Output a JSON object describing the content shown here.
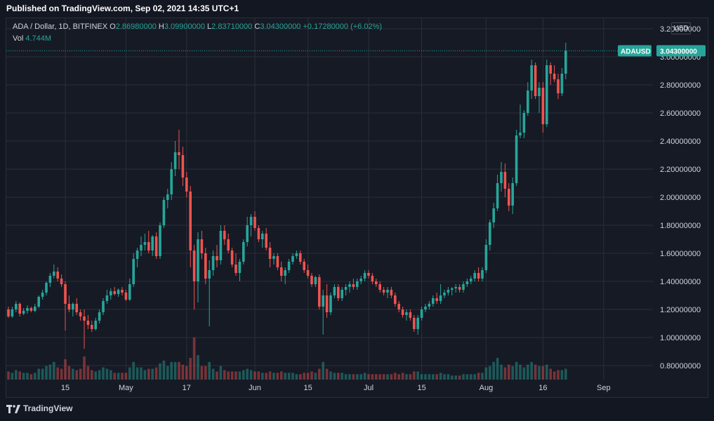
{
  "header": {
    "published": "Published on TradingView.com, Sep 02, 2021 14:35 UTC+1"
  },
  "legend": {
    "symbol": "ADA / Dollar, 1D, BITFINEX",
    "o_label": "O",
    "o_value": "2.86980000",
    "h_label": "H",
    "h_value": "3.09900000",
    "l_label": "L",
    "l_value": "2.83710000",
    "c_label": "C",
    "c_value": "3.04300000",
    "change": "+0.17280000 (+6.02%)",
    "vol_label": "Vol",
    "vol_value": "4.744M"
  },
  "currency": "USD",
  "price_tag": {
    "symbol": "ADAUSD",
    "value": "3.04300000"
  },
  "footer": {
    "brand": "TradingView"
  },
  "colors": {
    "up": "#26a69a",
    "down": "#ef5350",
    "bg": "#161a25",
    "grid": "#2a2e39"
  },
  "chart_data": {
    "type": "candlestick",
    "symbol": "ADAUSD",
    "ylim": [
      0.7,
      3.2
    ],
    "y_ticks": [
      {
        "value": 0.8,
        "label": "0.80000000"
      },
      {
        "value": 1.0,
        "label": "1.00000000"
      },
      {
        "value": 1.2,
        "label": "1.20000000"
      },
      {
        "value": 1.4,
        "label": "1.40000000"
      },
      {
        "value": 1.6,
        "label": "1.60000000"
      },
      {
        "value": 1.8,
        "label": "1.80000000"
      },
      {
        "value": 2.0,
        "label": "2.00000000"
      },
      {
        "value": 2.2,
        "label": "2.20000000"
      },
      {
        "value": 2.4,
        "label": "2.40000000"
      },
      {
        "value": 2.6,
        "label": "2.60000000"
      },
      {
        "value": 2.8,
        "label": "2.80000000"
      },
      {
        "value": 3.0,
        "label": "3.00000000"
      },
      {
        "value": 3.2,
        "label": "3.20000000"
      }
    ],
    "x_ticks": [
      {
        "index": 15,
        "label": "15"
      },
      {
        "index": 31,
        "label": "May"
      },
      {
        "index": 47,
        "label": "17"
      },
      {
        "index": 65,
        "label": "Jun"
      },
      {
        "index": 79,
        "label": "15"
      },
      {
        "index": 95,
        "label": "Jul"
      },
      {
        "index": 109,
        "label": "15"
      },
      {
        "index": 126,
        "label": "Aug"
      },
      {
        "index": 141,
        "label": "16"
      },
      {
        "index": 157,
        "label": "Sep"
      }
    ],
    "last_price": 3.043,
    "candles": [
      [
        1.2,
        1.22,
        1.14,
        1.15,
        0.6
      ],
      [
        1.15,
        1.22,
        1.14,
        1.2,
        0.5
      ],
      [
        1.2,
        1.26,
        1.18,
        1.24,
        0.7
      ],
      [
        1.24,
        1.25,
        1.15,
        1.17,
        0.6
      ],
      [
        1.17,
        1.21,
        1.16,
        1.19,
        0.5
      ],
      [
        1.19,
        1.23,
        1.17,
        1.21,
        0.5
      ],
      [
        1.21,
        1.22,
        1.18,
        1.19,
        0.4
      ],
      [
        1.19,
        1.24,
        1.18,
        1.22,
        0.5
      ],
      [
        1.22,
        1.3,
        1.21,
        1.29,
        0.8
      ],
      [
        1.29,
        1.34,
        1.27,
        1.32,
        0.8
      ],
      [
        1.32,
        1.4,
        1.3,
        1.39,
        1.0
      ],
      [
        1.39,
        1.46,
        1.36,
        1.44,
        1.1
      ],
      [
        1.44,
        1.52,
        1.42,
        1.47,
        1.3
      ],
      [
        1.47,
        1.5,
        1.4,
        1.42,
        0.9
      ],
      [
        1.42,
        1.45,
        1.36,
        1.38,
        0.8
      ],
      [
        1.38,
        1.4,
        1.05,
        1.24,
        1.5
      ],
      [
        1.24,
        1.3,
        1.18,
        1.2,
        1.0
      ],
      [
        1.2,
        1.25,
        1.15,
        1.24,
        0.8
      ],
      [
        1.24,
        1.28,
        1.16,
        1.18,
        0.7
      ],
      [
        1.18,
        1.2,
        1.12,
        1.15,
        0.8
      ],
      [
        1.15,
        1.2,
        0.92,
        1.12,
        1.7
      ],
      [
        1.12,
        1.16,
        1.06,
        1.09,
        1.0
      ],
      [
        1.09,
        1.12,
        1.04,
        1.06,
        0.7
      ],
      [
        1.06,
        1.14,
        1.05,
        1.12,
        0.6
      ],
      [
        1.12,
        1.2,
        1.1,
        1.18,
        0.7
      ],
      [
        1.18,
        1.28,
        1.16,
        1.26,
        0.9
      ],
      [
        1.26,
        1.34,
        1.24,
        1.3,
        0.8
      ],
      [
        1.3,
        1.35,
        1.27,
        1.33,
        0.7
      ],
      [
        1.33,
        1.36,
        1.3,
        1.31,
        0.5
      ],
      [
        1.31,
        1.35,
        1.29,
        1.34,
        0.5
      ],
      [
        1.34,
        1.36,
        1.3,
        1.32,
        0.5
      ],
      [
        1.32,
        1.34,
        1.26,
        1.27,
        0.5
      ],
      [
        1.27,
        1.42,
        1.26,
        1.38,
        0.9
      ],
      [
        1.38,
        1.6,
        1.36,
        1.56,
        1.3
      ],
      [
        1.56,
        1.64,
        1.5,
        1.62,
        0.9
      ],
      [
        1.62,
        1.72,
        1.58,
        1.66,
        0.9
      ],
      [
        1.66,
        1.74,
        1.62,
        1.68,
        0.7
      ],
      [
        1.68,
        1.76,
        1.6,
        1.62,
        0.8
      ],
      [
        1.62,
        1.73,
        1.58,
        1.72,
        0.8
      ],
      [
        1.72,
        1.75,
        1.56,
        1.58,
        0.9
      ],
      [
        1.58,
        1.82,
        1.56,
        1.8,
        1.2
      ],
      [
        1.8,
        2.0,
        1.78,
        1.98,
        1.4
      ],
      [
        1.98,
        2.06,
        1.92,
        2.02,
        1.0
      ],
      [
        2.02,
        2.25,
        1.98,
        2.2,
        1.3
      ],
      [
        2.2,
        2.4,
        2.15,
        2.32,
        1.3
      ],
      [
        2.32,
        2.48,
        2.2,
        2.3,
        1.3
      ],
      [
        2.3,
        2.36,
        2.08,
        2.14,
        1.1
      ],
      [
        2.14,
        2.18,
        2.0,
        2.04,
        1.0
      ],
      [
        2.04,
        2.08,
        1.5,
        1.62,
        1.6
      ],
      [
        1.62,
        1.66,
        1.2,
        1.4,
        3.1
      ],
      [
        1.4,
        1.75,
        1.25,
        1.7,
        1.8
      ],
      [
        1.7,
        1.76,
        1.56,
        1.6,
        1.0
      ],
      [
        1.6,
        1.64,
        1.38,
        1.42,
        1.0
      ],
      [
        1.42,
        1.55,
        1.08,
        1.48,
        1.3
      ],
      [
        1.48,
        1.62,
        1.44,
        1.58,
        0.8
      ],
      [
        1.58,
        1.66,
        1.5,
        1.55,
        0.6
      ],
      [
        1.55,
        1.8,
        1.52,
        1.76,
        1.0
      ],
      [
        1.76,
        1.8,
        1.66,
        1.7,
        0.7
      ],
      [
        1.7,
        1.74,
        1.6,
        1.62,
        0.6
      ],
      [
        1.62,
        1.64,
        1.5,
        1.52,
        0.6
      ],
      [
        1.52,
        1.6,
        1.44,
        1.46,
        0.6
      ],
      [
        1.46,
        1.56,
        1.4,
        1.54,
        0.6
      ],
      [
        1.54,
        1.7,
        1.52,
        1.68,
        0.7
      ],
      [
        1.68,
        1.86,
        1.65,
        1.8,
        0.8
      ],
      [
        1.8,
        1.88,
        1.72,
        1.86,
        0.7
      ],
      [
        1.86,
        1.9,
        1.76,
        1.78,
        0.6
      ],
      [
        1.78,
        1.8,
        1.68,
        1.7,
        0.6
      ],
      [
        1.7,
        1.76,
        1.64,
        1.74,
        0.5
      ],
      [
        1.74,
        1.78,
        1.62,
        1.64,
        0.5
      ],
      [
        1.64,
        1.68,
        1.5,
        1.56,
        0.6
      ],
      [
        1.56,
        1.6,
        1.52,
        1.58,
        0.5
      ],
      [
        1.58,
        1.6,
        1.48,
        1.5,
        0.5
      ],
      [
        1.5,
        1.54,
        1.4,
        1.44,
        0.6
      ],
      [
        1.44,
        1.5,
        1.38,
        1.48,
        0.5
      ],
      [
        1.48,
        1.56,
        1.46,
        1.54,
        0.5
      ],
      [
        1.54,
        1.6,
        1.52,
        1.58,
        0.5
      ],
      [
        1.58,
        1.62,
        1.56,
        1.6,
        0.4
      ],
      [
        1.6,
        1.62,
        1.52,
        1.54,
        0.4
      ],
      [
        1.54,
        1.56,
        1.46,
        1.48,
        0.5
      ],
      [
        1.48,
        1.52,
        1.42,
        1.44,
        0.5
      ],
      [
        1.44,
        1.46,
        1.36,
        1.38,
        0.6
      ],
      [
        1.38,
        1.44,
        1.36,
        1.43,
        0.5
      ],
      [
        1.43,
        1.45,
        1.2,
        1.22,
        0.8
      ],
      [
        1.22,
        1.34,
        1.02,
        1.3,
        1.3
      ],
      [
        1.3,
        1.38,
        1.14,
        1.18,
        0.8
      ],
      [
        1.18,
        1.32,
        1.16,
        1.3,
        0.6
      ],
      [
        1.3,
        1.38,
        1.28,
        1.36,
        0.5
      ],
      [
        1.36,
        1.38,
        1.26,
        1.28,
        0.5
      ],
      [
        1.28,
        1.36,
        1.26,
        1.34,
        0.5
      ],
      [
        1.34,
        1.38,
        1.3,
        1.36,
        0.4
      ],
      [
        1.36,
        1.4,
        1.32,
        1.38,
        0.4
      ],
      [
        1.38,
        1.42,
        1.34,
        1.36,
        0.4
      ],
      [
        1.36,
        1.42,
        1.34,
        1.4,
        0.4
      ],
      [
        1.4,
        1.44,
        1.38,
        1.42,
        0.4
      ],
      [
        1.42,
        1.48,
        1.4,
        1.46,
        0.5
      ],
      [
        1.46,
        1.48,
        1.42,
        1.44,
        0.4
      ],
      [
        1.44,
        1.46,
        1.38,
        1.4,
        0.4
      ],
      [
        1.4,
        1.42,
        1.36,
        1.38,
        0.4
      ],
      [
        1.38,
        1.4,
        1.32,
        1.34,
        0.4
      ],
      [
        1.34,
        1.36,
        1.3,
        1.32,
        0.4
      ],
      [
        1.32,
        1.36,
        1.28,
        1.34,
        0.4
      ],
      [
        1.34,
        1.36,
        1.28,
        1.3,
        0.4
      ],
      [
        1.3,
        1.32,
        1.22,
        1.24,
        0.5
      ],
      [
        1.24,
        1.26,
        1.18,
        1.2,
        0.4
      ],
      [
        1.2,
        1.22,
        1.14,
        1.16,
        0.5
      ],
      [
        1.16,
        1.2,
        1.12,
        1.18,
        0.4
      ],
      [
        1.18,
        1.2,
        1.12,
        1.14,
        0.4
      ],
      [
        1.14,
        1.16,
        1.04,
        1.06,
        0.6
      ],
      [
        1.06,
        1.16,
        1.02,
        1.14,
        0.6
      ],
      [
        1.14,
        1.22,
        1.12,
        1.2,
        0.4
      ],
      [
        1.2,
        1.24,
        1.18,
        1.22,
        0.4
      ],
      [
        1.22,
        1.26,
        1.2,
        1.24,
        0.4
      ],
      [
        1.24,
        1.3,
        1.22,
        1.28,
        0.4
      ],
      [
        1.28,
        1.32,
        1.24,
        1.26,
        0.4
      ],
      [
        1.26,
        1.38,
        1.24,
        1.3,
        0.5
      ],
      [
        1.3,
        1.34,
        1.28,
        1.32,
        0.4
      ],
      [
        1.32,
        1.36,
        1.3,
        1.34,
        0.4
      ],
      [
        1.34,
        1.36,
        1.3,
        1.35,
        0.3
      ],
      [
        1.35,
        1.38,
        1.32,
        1.36,
        0.3
      ],
      [
        1.36,
        1.38,
        1.32,
        1.34,
        0.3
      ],
      [
        1.34,
        1.4,
        1.32,
        1.38,
        0.4
      ],
      [
        1.38,
        1.42,
        1.36,
        1.4,
        0.4
      ],
      [
        1.4,
        1.44,
        1.38,
        1.42,
        0.4
      ],
      [
        1.42,
        1.48,
        1.4,
        1.46,
        0.4
      ],
      [
        1.46,
        1.5,
        1.4,
        1.42,
        0.5
      ],
      [
        1.42,
        1.5,
        1.4,
        1.48,
        0.5
      ],
      [
        1.48,
        1.7,
        1.46,
        1.66,
        0.9
      ],
      [
        1.66,
        1.84,
        1.62,
        1.82,
        1.0
      ],
      [
        1.82,
        1.96,
        1.78,
        1.92,
        1.3
      ],
      [
        1.92,
        2.16,
        1.9,
        2.1,
        1.6
      ],
      [
        2.1,
        2.25,
        2.04,
        2.18,
        1.1
      ],
      [
        2.18,
        2.24,
        2.0,
        2.06,
        0.9
      ],
      [
        2.06,
        2.1,
        1.9,
        1.94,
        1.1
      ],
      [
        1.94,
        2.14,
        1.88,
        2.1,
        1.0
      ],
      [
        2.1,
        2.48,
        2.08,
        2.44,
        1.3
      ],
      [
        2.44,
        2.66,
        2.42,
        2.46,
        1.1
      ],
      [
        2.46,
        2.62,
        2.42,
        2.6,
        0.9
      ],
      [
        2.6,
        2.82,
        2.58,
        2.76,
        1.1
      ],
      [
        2.76,
        2.98,
        2.7,
        2.94,
        1.3
      ],
      [
        2.94,
        2.96,
        2.7,
        2.72,
        1.1
      ],
      [
        2.72,
        2.82,
        2.6,
        2.78,
        1.0
      ],
      [
        2.78,
        2.82,
        2.46,
        2.52,
        1.0
      ],
      [
        2.52,
        2.98,
        2.5,
        2.94,
        1.1
      ],
      [
        2.94,
        2.96,
        2.8,
        2.88,
        0.8
      ],
      [
        2.88,
        2.94,
        2.82,
        2.84,
        0.6
      ],
      [
        2.84,
        2.88,
        2.7,
        2.74,
        0.7
      ],
      [
        2.74,
        2.92,
        2.72,
        2.88,
        0.7
      ],
      [
        2.88,
        3.1,
        2.84,
        3.043,
        0.8
      ]
    ]
  }
}
